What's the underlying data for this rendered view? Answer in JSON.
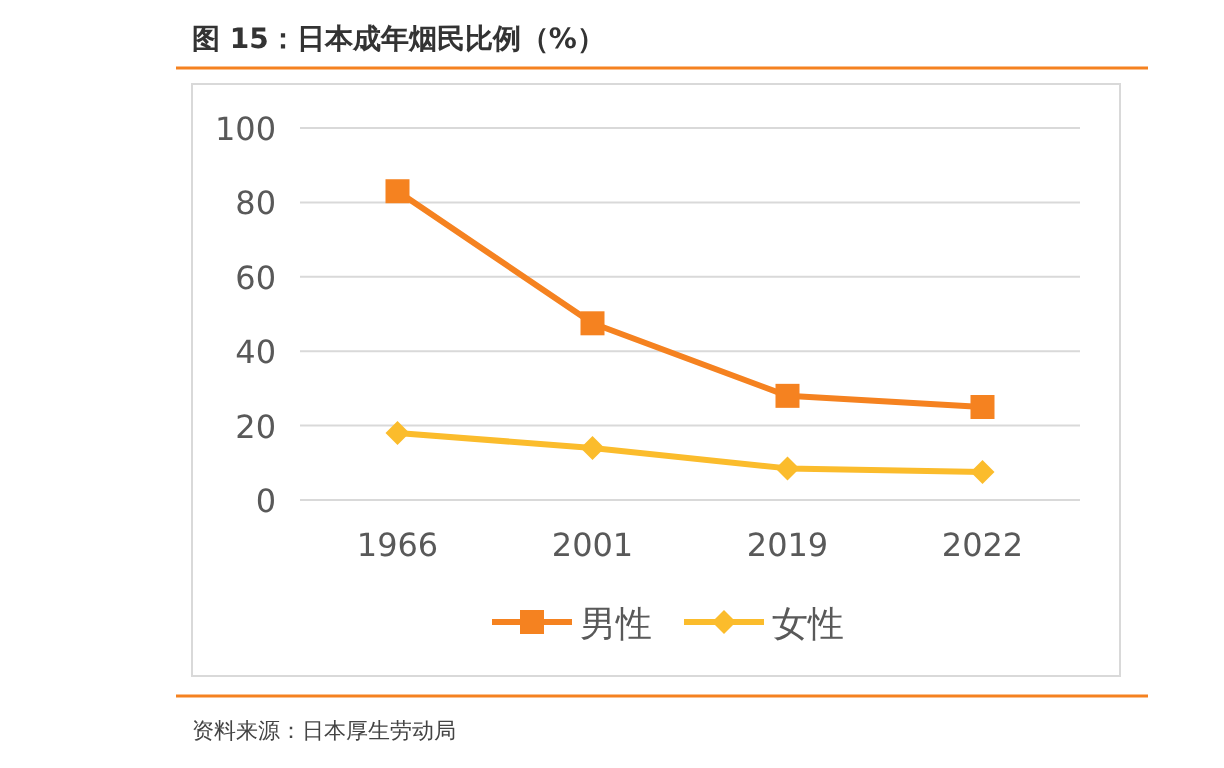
{
  "chart_data": {
    "type": "line",
    "title": "图 15：日本成年烟民比例（%）",
    "categories": [
      "1966",
      "2001",
      "2019",
      "2022"
    ],
    "series": [
      {
        "name": "男性",
        "color": "#f58220",
        "marker": "square",
        "values": [
          83,
          47.5,
          28,
          25
        ]
      },
      {
        "name": "女性",
        "color": "#fbbc2c",
        "marker": "diamond",
        "values": [
          18,
          14,
          8.5,
          7.5
        ]
      }
    ],
    "ylim": [
      0,
      100
    ],
    "yticks": [
      0,
      20,
      40,
      60,
      80,
      100
    ],
    "grid": "y",
    "legend": "bottom",
    "annotations": [
      "资料来源：日本厚生劳动局"
    ]
  }
}
